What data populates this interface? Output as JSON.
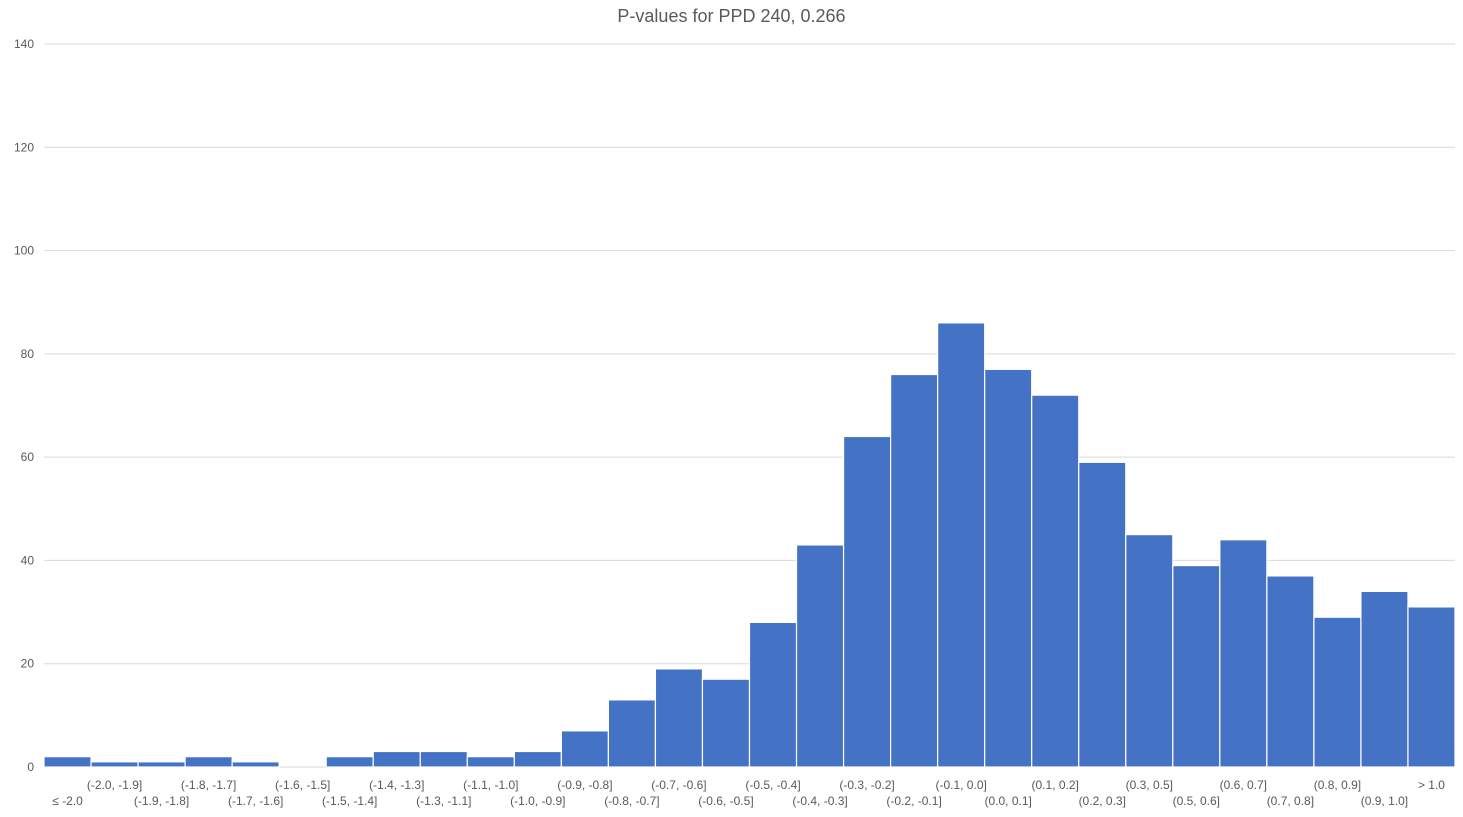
{
  "chart_data": {
    "type": "bar",
    "title": "P-values for PPD 240, 0.266",
    "xlabel": "",
    "ylabel": "",
    "ylim": [
      0,
      140
    ],
    "yticks": [
      0,
      20,
      40,
      60,
      80,
      100,
      120,
      140
    ],
    "grid": true,
    "bar_color": "#4472c4",
    "categories": [
      "≤ -2.0",
      "(-2.0, -1.9]",
      "(-1.9, -1.8]",
      "(-1.8, -1.7]",
      "(-1.7, -1.6]",
      "(-1.6, -1.5]",
      "(-1.5, -1.4]",
      "(-1.4, -1.3]",
      "(-1.3, -1.1]",
      "(-1.1, -1.0]",
      "(-1.0, -0.9]",
      "(-0.9, -0.8]",
      "(-0.8, -0.7]",
      "(-0.7, -0.6]",
      "(-0.6, -0.5]",
      "(-0.5, -0.4]",
      "(-0.4, -0.3]",
      "(-0.3, -0.2]",
      "(-0.2, -0.1]",
      "(-0.1, 0.0]",
      "(0.0, 0.1]",
      "(0.1, 0.2]",
      "(0.2, 0.3]",
      "(0.3, 0.5]",
      "(0.5, 0.6]",
      "(0.6, 0.7]",
      "(0.7, 0.8]",
      "(0.8, 0.9]",
      "(0.9, 1.0]",
      "> 1.0"
    ],
    "values": [
      2,
      1,
      1,
      2,
      1,
      0,
      2,
      3,
      3,
      2,
      3,
      7,
      13,
      19,
      17,
      28,
      43,
      64,
      76,
      86,
      77,
      72,
      59,
      45,
      39,
      44,
      37,
      29,
      34,
      31
    ]
  }
}
